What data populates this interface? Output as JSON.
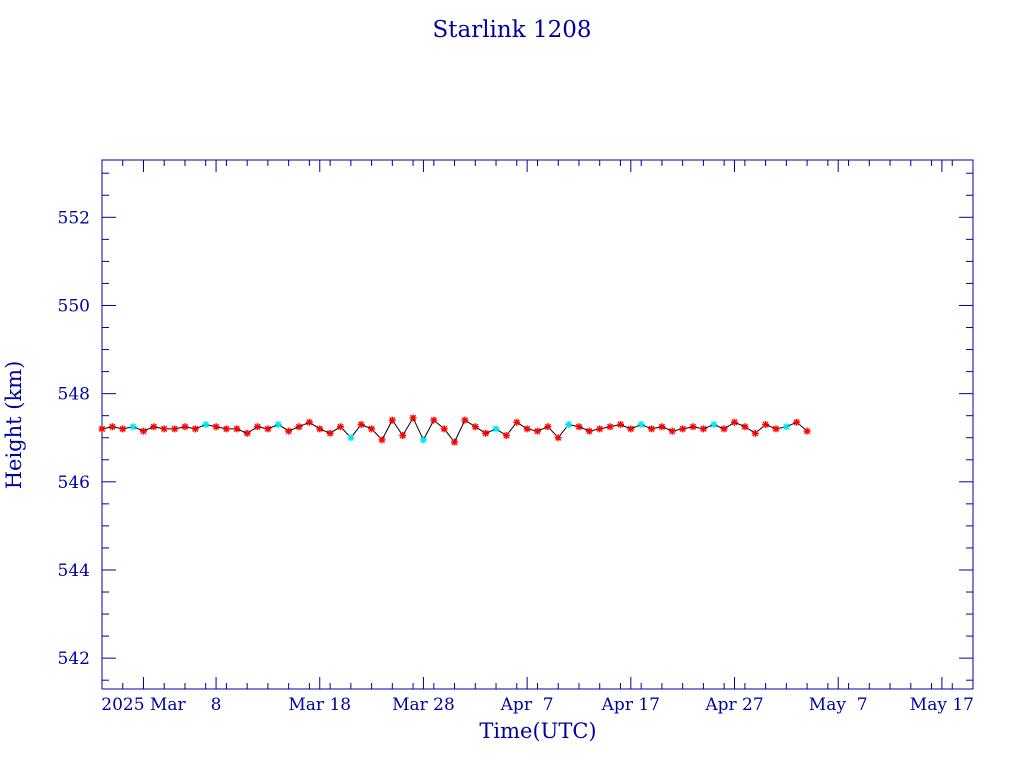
{
  "chart_data": {
    "type": "scatter",
    "title": "Starlink 1208",
    "xlabel": "Time(UTC)",
    "ylabel": "Height (km)",
    "x_unit": "date",
    "xlim": [
      "2025-02-25",
      "2025-05-20"
    ],
    "ylim": [
      541.3,
      553.3
    ],
    "x_ticks": [
      {
        "date": "2025-03-01",
        "label": "2025 Mar"
      },
      {
        "date": "2025-03-08",
        "label": "8"
      },
      {
        "date": "2025-03-18",
        "label": "Mar 18"
      },
      {
        "date": "2025-03-28",
        "label": "Mar 28"
      },
      {
        "date": "2025-04-07",
        "label": "Apr  7"
      },
      {
        "date": "2025-04-17",
        "label": "Apr 17"
      },
      {
        "date": "2025-04-27",
        "label": "Apr 27"
      },
      {
        "date": "2025-05-07",
        "label": "May  7"
      },
      {
        "date": "2025-05-17",
        "label": "May 17"
      }
    ],
    "y_ticks": [
      542,
      544,
      546,
      548,
      550,
      552
    ],
    "grid": false,
    "colors": {
      "axes": "#0000a0",
      "line": "#000000",
      "marker_main": "#ff0000",
      "marker_alt": "#00e5ee"
    },
    "series": [
      {
        "x": [
          "2025-02-25",
          "2025-02-26",
          "2025-02-27",
          "2025-02-28",
          "2025-03-01",
          "2025-03-02",
          "2025-03-03",
          "2025-03-04",
          "2025-03-05",
          "2025-03-06",
          "2025-03-07",
          "2025-03-08",
          "2025-03-09",
          "2025-03-10",
          "2025-03-11",
          "2025-03-12",
          "2025-03-13",
          "2025-03-14",
          "2025-03-15",
          "2025-03-16",
          "2025-03-17",
          "2025-03-18",
          "2025-03-19",
          "2025-03-20",
          "2025-03-21",
          "2025-03-22",
          "2025-03-23",
          "2025-03-24",
          "2025-03-25",
          "2025-03-26",
          "2025-03-27",
          "2025-03-28",
          "2025-03-29",
          "2025-03-30",
          "2025-03-31",
          "2025-04-01",
          "2025-04-02",
          "2025-04-03",
          "2025-04-04",
          "2025-04-05",
          "2025-04-06",
          "2025-04-07",
          "2025-04-08",
          "2025-04-09",
          "2025-04-10",
          "2025-04-11",
          "2025-04-12",
          "2025-04-13",
          "2025-04-14",
          "2025-04-15",
          "2025-04-16",
          "2025-04-17",
          "2025-04-18",
          "2025-04-19",
          "2025-04-20",
          "2025-04-21",
          "2025-04-22",
          "2025-04-23",
          "2025-04-24",
          "2025-04-25",
          "2025-04-26",
          "2025-04-27",
          "2025-04-28",
          "2025-04-29",
          "2025-04-30",
          "2025-05-01",
          "2025-05-02",
          "2025-05-03",
          "2025-05-04"
        ],
        "y": [
          547.2,
          547.25,
          547.2,
          547.25,
          547.15,
          547.25,
          547.2,
          547.2,
          547.25,
          547.2,
          547.3,
          547.25,
          547.2,
          547.2,
          547.1,
          547.25,
          547.2,
          547.3,
          547.15,
          547.25,
          547.35,
          547.2,
          547.1,
          547.25,
          547.0,
          547.3,
          547.2,
          546.95,
          547.4,
          547.05,
          547.45,
          546.95,
          547.4,
          547.2,
          546.9,
          547.4,
          547.25,
          547.1,
          547.2,
          547.05,
          547.35,
          547.2,
          547.15,
          547.25,
          547.0,
          547.3,
          547.25,
          547.15,
          547.2,
          547.25,
          547.3,
          547.2,
          547.3,
          547.2,
          547.25,
          547.15,
          547.2,
          547.25,
          547.2,
          547.3,
          547.2,
          547.35,
          547.25,
          547.1,
          547.3,
          547.2,
          547.25,
          547.35,
          547.15
        ],
        "marker": "asterisk"
      }
    ]
  }
}
